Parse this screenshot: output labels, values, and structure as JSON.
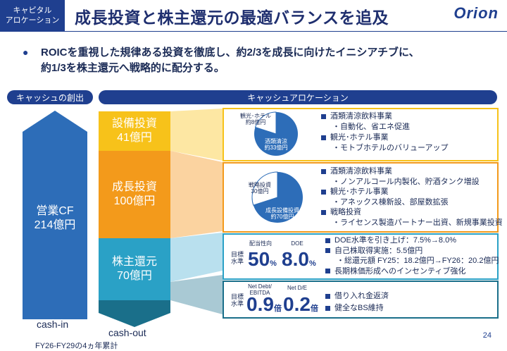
{
  "header": {
    "tag_line1": "キャピタル",
    "tag_line2": "アロケーション",
    "title": "成長投資と株主還元の最適バランスを追及",
    "logo": "Orion"
  },
  "bullet": {
    "line1": "ROICを重視した規律ある投資を徹底し、約2/3を成長に向けたイニシアチブに、",
    "line2": "約1/3を株主還元へ戦略的に配分する。"
  },
  "cash_creation": {
    "header": "キャッシュの創出",
    "label1": "営業CF",
    "label2": "214億円",
    "caption": "cash-in"
  },
  "allocation": {
    "header": "キャッシュアロケーション",
    "caption": "cash-out",
    "period": "FY26-FY29の4ヵ年累計",
    "segments": [
      {
        "name": "設備投資",
        "amount": "41億円",
        "color": "#f7c21a"
      },
      {
        "name": "成長投資",
        "amount": "100億円",
        "color": "#f39a1b"
      },
      {
        "name": "株主還元",
        "amount": "70億円",
        "color": "#2aa1c6"
      }
    ]
  },
  "panel_capex": {
    "pie_small_label1": "観光･ホテル",
    "pie_small_label2": "約8億円",
    "pie_large_label1": "酒類清涼",
    "pie_large_label2": "約33億円",
    "pie_share_small": 0.2,
    "items": [
      {
        "text": "酒類清涼飲料事業",
        "sub": false
      },
      {
        "text": "・自動化、省エネ促進",
        "sub": true
      },
      {
        "text": "観光･ホテル事業",
        "sub": false
      },
      {
        "text": "・モトブホテルのバリューアップ",
        "sub": true
      }
    ]
  },
  "panel_growth": {
    "pie_small_label1": "戦略投資",
    "pie_small_label2": "30億円",
    "pie_large_label1": "成長設備投資",
    "pie_large_label2": "約70億円",
    "pie_share_small": 0.3,
    "items": [
      {
        "text": "酒類清涼飲料事業",
        "sub": false
      },
      {
        "text": "・ノンアルコール内製化、貯酒タンク増設",
        "sub": true
      },
      {
        "text": "観光･ホテル事業",
        "sub": false
      },
      {
        "text": "・アネックス棟新設、部屋数拡張",
        "sub": true
      },
      {
        "text": "戦略投資",
        "sub": false
      },
      {
        "text": "・ライセンス製造パートナー出資、新規事業投資",
        "sub": true
      }
    ]
  },
  "panel_return": {
    "target_label1": "目標",
    "target_label2": "水準",
    "m1_label": "配当性向",
    "m1_value": "50",
    "m1_unit": "%",
    "m2_label": "DOE",
    "m2_value": "8.0",
    "m2_unit": "%",
    "items": [
      {
        "text": "DOE水準を引き上げ：7.5%→8.0%",
        "sub": false
      },
      {
        "text": "自己株取得実施：5.5億円",
        "sub": false
      },
      {
        "text": "・総還元額 FY25：18.2億円→FY26：20.2億円",
        "sub": true
      },
      {
        "text": "長期株価形成へのインセンティブ強化",
        "sub": false
      }
    ]
  },
  "panel_debt": {
    "target_label1": "目標",
    "target_label2": "水準",
    "m1_label1": "Net Debt/",
    "m1_label2": "EBITDA",
    "m1_value": "0.9",
    "m1_unit": "倍",
    "m2_label": "Net D/E",
    "m2_value": "0.2",
    "m2_unit": "倍",
    "items": [
      {
        "text": "借り入れ金返済",
        "sub": false
      },
      {
        "text": "健全なBS維持",
        "sub": false
      }
    ]
  },
  "page_number": "24"
}
